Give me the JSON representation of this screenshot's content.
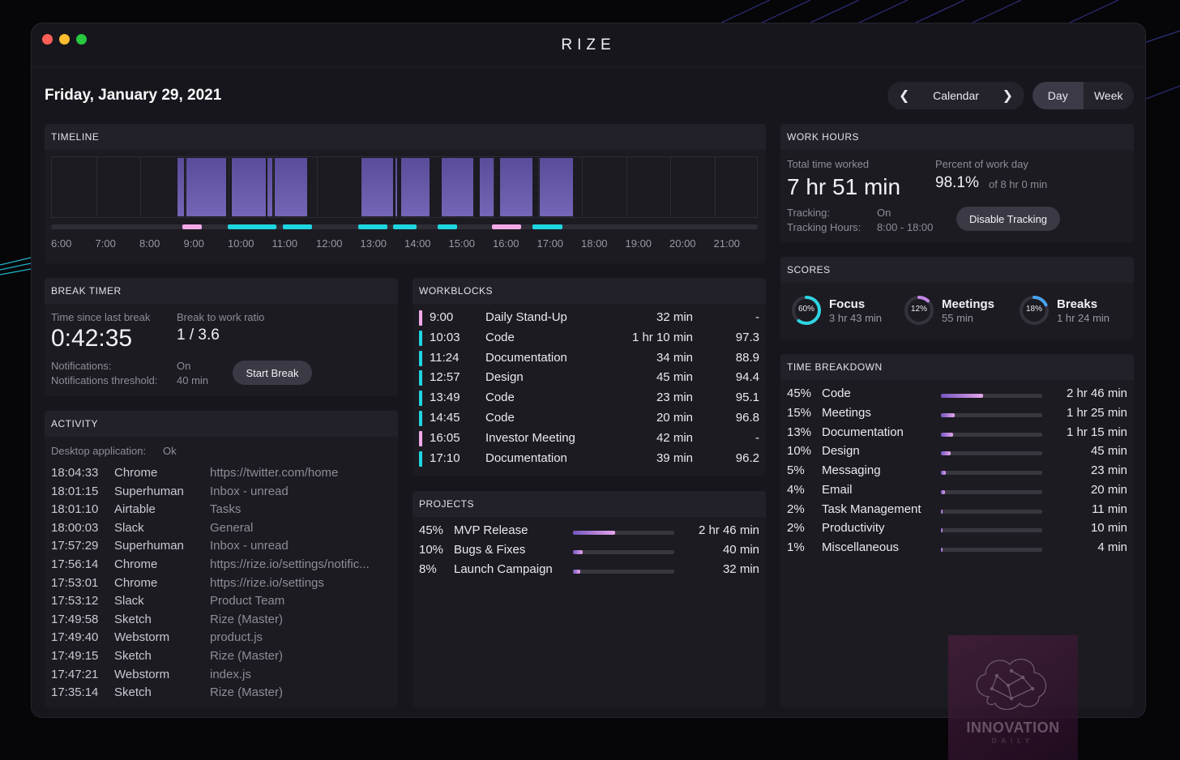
{
  "app": {
    "title": "RIZE"
  },
  "header": {
    "date": "Friday, January 29, 2021",
    "calendar_label": "Calendar",
    "prev_icon": "chevron-left",
    "next_icon": "chevron-right",
    "views": [
      "Day",
      "Week"
    ],
    "active_view": "Day"
  },
  "timeline": {
    "title": "TIMELINE",
    "hours": [
      "6:00",
      "7:00",
      "8:00",
      "9:00",
      "10:00",
      "11:00",
      "12:00",
      "13:00",
      "14:00",
      "15:00",
      "16:00",
      "17:00",
      "18:00",
      "19:00",
      "20:00",
      "21:00"
    ],
    "blocks": [
      {
        "start": 8.85,
        "end": 9.0
      },
      {
        "start": 9.05,
        "end": 9.95
      },
      {
        "start": 10.08,
        "end": 10.85
      },
      {
        "start": 10.88,
        "end": 11.0
      },
      {
        "start": 11.05,
        "end": 11.78
      },
      {
        "start": 13.0,
        "end": 13.72
      },
      {
        "start": 13.78,
        "end": 13.82
      },
      {
        "start": 13.9,
        "end": 14.55
      },
      {
        "start": 14.82,
        "end": 15.55
      },
      {
        "start": 15.68,
        "end": 16.0
      },
      {
        "start": 16.15,
        "end": 16.88
      },
      {
        "start": 17.05,
        "end": 17.8
      }
    ],
    "markers": [
      {
        "start": 8.98,
        "end": 9.42,
        "color": "#f2a9e8"
      },
      {
        "start": 10.0,
        "end": 11.1,
        "color": "#1ed6e0"
      },
      {
        "start": 11.24,
        "end": 11.9,
        "color": "#1ed6e0"
      },
      {
        "start": 12.95,
        "end": 13.62,
        "color": "#1ed6e0"
      },
      {
        "start": 13.75,
        "end": 14.27,
        "color": "#1ed6e0"
      },
      {
        "start": 14.75,
        "end": 15.2,
        "color": "#1ed6e0"
      },
      {
        "start": 15.98,
        "end": 16.65,
        "color": "#f2a9e8"
      },
      {
        "start": 16.9,
        "end": 17.58,
        "color": "#1ed6e0"
      }
    ]
  },
  "work_hours": {
    "title": "WORK HOURS",
    "total_label": "Total time worked",
    "total_value": "7 hr 51 min",
    "percent_label": "Percent of work day",
    "percent_value": "98.1%",
    "percent_sub": "of 8 hr 0 min",
    "tracking_label": "Tracking:",
    "tracking_value": "On",
    "hours_label": "Tracking Hours:",
    "hours_value": "8:00 - 18:00",
    "button": "Disable Tracking"
  },
  "scores": {
    "title": "SCORES",
    "items": [
      {
        "name": "Focus",
        "time": "3 hr 43 min",
        "pct": "60%",
        "value": 0.6,
        "color": "#2fd4e4"
      },
      {
        "name": "Meetings",
        "time": "55 min",
        "pct": "12%",
        "value": 0.12,
        "color": "#c286e6"
      },
      {
        "name": "Breaks",
        "time": "1 hr 24 min",
        "pct": "18%",
        "value": 0.18,
        "color": "#4aa3f0"
      }
    ]
  },
  "break_timer": {
    "title": "BREAK TIMER",
    "since_label": "Time since last break",
    "since_value": "0:42:35",
    "ratio_label": "Break to work ratio",
    "ratio_value": "1 / 3.6",
    "notif_label": "Notifications:",
    "notif_value": "On",
    "threshold_label": "Notifications threshold:",
    "threshold_value": "40 min",
    "button": "Start Break"
  },
  "workblocks": {
    "title": "WORKBLOCKS",
    "rows": [
      {
        "time": "9:00",
        "name": "Daily Stand-Up",
        "duration": "32 min",
        "score": "-",
        "color": "#f2a9e8"
      },
      {
        "time": "10:03",
        "name": "Code",
        "duration": "1 hr 10 min",
        "score": "97.3",
        "color": "#1ed6e0"
      },
      {
        "time": "11:24",
        "name": "Documentation",
        "duration": "34 min",
        "score": "88.9",
        "color": "#1ed6e0"
      },
      {
        "time": "12:57",
        "name": "Design",
        "duration": "45 min",
        "score": "94.4",
        "color": "#1ed6e0"
      },
      {
        "time": "13:49",
        "name": "Code",
        "duration": "23 min",
        "score": "95.1",
        "color": "#1ed6e0"
      },
      {
        "time": "14:45",
        "name": "Code",
        "duration": "20 min",
        "score": "96.8",
        "color": "#1ed6e0"
      },
      {
        "time": "16:05",
        "name": "Investor Meeting",
        "duration": "42 min",
        "score": "-",
        "color": "#f2a9e8"
      },
      {
        "time": "17:10",
        "name": "Documentation",
        "duration": "39 min",
        "score": "96.2",
        "color": "#1ed6e0"
      }
    ]
  },
  "activity": {
    "title": "ACTIVITY",
    "desktop_label": "Desktop application:",
    "desktop_value": "Ok",
    "rows": [
      {
        "time": "18:04:33",
        "app": "Chrome",
        "detail": "https://twitter.com/home"
      },
      {
        "time": "18:01:15",
        "app": "Superhuman",
        "detail": "Inbox - unread"
      },
      {
        "time": "18:01:10",
        "app": "Airtable",
        "detail": "Tasks"
      },
      {
        "time": "18:00:03",
        "app": "Slack",
        "detail": "General"
      },
      {
        "time": "17:57:29",
        "app": "Superhuman",
        "detail": "Inbox - unread"
      },
      {
        "time": "17:56:14",
        "app": "Chrome",
        "detail": "https://rize.io/settings/notific..."
      },
      {
        "time": "17:53:01",
        "app": "Chrome",
        "detail": "https://rize.io/settings"
      },
      {
        "time": "17:53:12",
        "app": "Slack",
        "detail": "Product Team"
      },
      {
        "time": "17:49:58",
        "app": "Sketch",
        "detail": "Rize (Master)"
      },
      {
        "time": "17:49:40",
        "app": "Webstorm",
        "detail": "product.js"
      },
      {
        "time": "17:49:15",
        "app": "Sketch",
        "detail": "Rize (Master)"
      },
      {
        "time": "17:47:21",
        "app": "Webstorm",
        "detail": "index.js"
      },
      {
        "time": "17:35:14",
        "app": "Sketch",
        "detail": "Rize (Master)"
      }
    ]
  },
  "projects": {
    "title": "PROJECTS",
    "rows": [
      {
        "pct": "45%",
        "name": "MVP Release",
        "value": 0.45,
        "time": "2 hr 46 min"
      },
      {
        "pct": "10%",
        "name": "Bugs & Fixes",
        "value": 0.1,
        "time": "40 min"
      },
      {
        "pct": "8%",
        "name": "Launch Campaign",
        "value": 0.08,
        "time": "32 min"
      }
    ]
  },
  "time_breakdown": {
    "title": "TIME BREAKDOWN",
    "rows": [
      {
        "pct": "45%",
        "name": "Code",
        "value": 0.45,
        "time": "2 hr 46 min"
      },
      {
        "pct": "15%",
        "name": "Meetings",
        "value": 0.15,
        "time": "1 hr 25 min"
      },
      {
        "pct": "13%",
        "name": "Documentation",
        "value": 0.13,
        "time": "1 hr 15 min"
      },
      {
        "pct": "10%",
        "name": "Design",
        "value": 0.1,
        "time": "45 min"
      },
      {
        "pct": "5%",
        "name": "Messaging",
        "value": 0.05,
        "time": "23 min"
      },
      {
        "pct": "4%",
        "name": "Email",
        "value": 0.04,
        "time": "20 min"
      },
      {
        "pct": "2%",
        "name": "Task Management",
        "value": 0.02,
        "time": "11 min"
      },
      {
        "pct": "2%",
        "name": "Productivity",
        "value": 0.02,
        "time": "10 min"
      },
      {
        "pct": "1%",
        "name": "Miscellaneous",
        "value": 0.01,
        "time": "4 min"
      }
    ]
  },
  "watermark": {
    "title": "INNOVATION",
    "subtitle": "DAILY"
  }
}
